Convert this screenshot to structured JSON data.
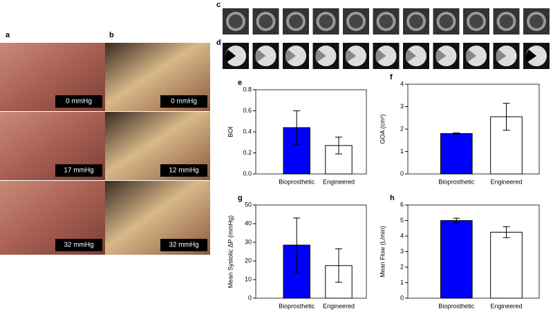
{
  "panels": {
    "a": "a",
    "b": "b",
    "c": "c",
    "d": "d"
  },
  "photos": {
    "a": [
      "0 mmHg",
      "17 mmHg",
      "32 mmHg"
    ],
    "b": [
      "0 mmHg",
      "12 mmHg",
      "32 mmHg"
    ]
  },
  "chart_data": [
    {
      "type": "bar",
      "panel": "e",
      "y_label": "BOI",
      "categories": [
        "Bioprosthetic",
        "Engineered"
      ],
      "values": [
        0.44,
        0.27
      ],
      "errors": [
        0.16,
        0.08
      ],
      "colors": [
        "#0000ff",
        "#ffffff"
      ],
      "ylim": [
        0,
        0.8
      ],
      "yticks": [
        {
          "value": 0,
          "label": "0.0"
        },
        0.2,
        0.4,
        0.6,
        0.8
      ]
    },
    {
      "type": "bar",
      "panel": "f",
      "y_label": "GOA (cm²)",
      "categories": [
        "Bioprosthetic",
        "Engineered"
      ],
      "values": [
        1.8,
        2.55
      ],
      "errors": [
        0.03,
        0.6
      ],
      "colors": [
        "#0000ff",
        "#ffffff"
      ],
      "ylim": [
        0,
        4
      ],
      "yticks": [
        0,
        1,
        2,
        3,
        4
      ]
    },
    {
      "type": "bar",
      "panel": "g",
      "y_label": "Mean Systolic ΔP (mmHg)",
      "categories": [
        "Bioprosthetic",
        "Engineered"
      ],
      "values": [
        28.5,
        17.5
      ],
      "errors": [
        14.5,
        9
      ],
      "colors": [
        "#0000ff",
        "#ffffff"
      ],
      "ylim": [
        0,
        50
      ],
      "yticks": [
        0,
        10,
        20,
        30,
        40,
        50
      ]
    },
    {
      "type": "bar",
      "panel": "h",
      "y_label": "Mean Flow (L/min)",
      "categories": [
        "Bioprosthetic",
        "Engineered"
      ],
      "values": [
        5.0,
        4.25
      ],
      "errors": [
        0.15,
        0.35
      ],
      "colors": [
        "#0000ff",
        "#ffffff"
      ],
      "ylim": [
        0,
        6
      ],
      "yticks": [
        0,
        1,
        2,
        3,
        4,
        5,
        6
      ]
    }
  ]
}
